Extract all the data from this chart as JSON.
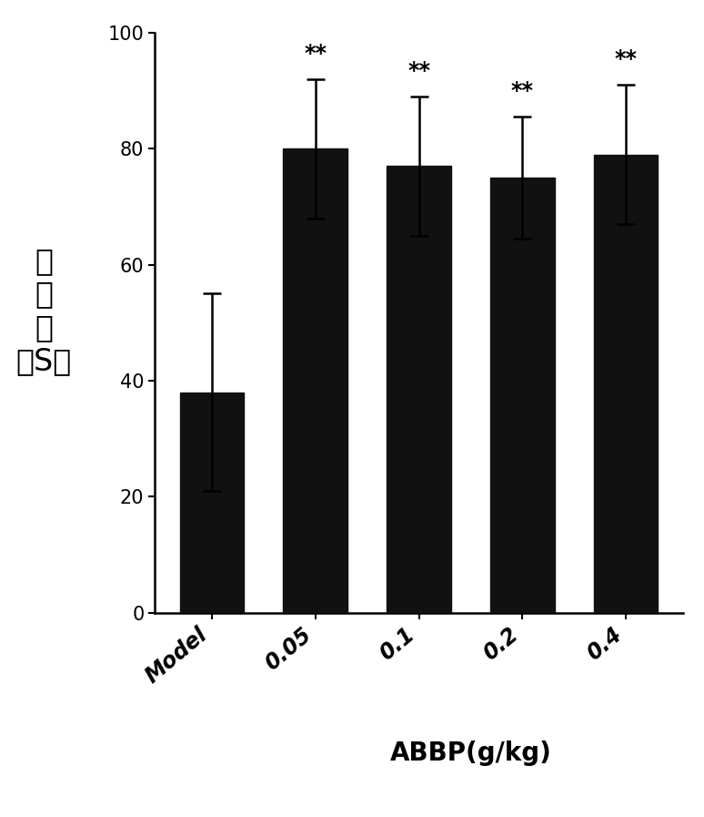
{
  "categories": [
    "Model",
    "0.05",
    "0.1",
    "0.2",
    "0.4"
  ],
  "values": [
    38.0,
    80.0,
    77.0,
    75.0,
    79.0
  ],
  "errors_up": [
    17.0,
    12.0,
    12.0,
    10.5,
    12.0
  ],
  "errors_down": [
    17.0,
    12.0,
    12.0,
    10.5,
    12.0
  ],
  "bar_color": "#111111",
  "bar_width": 0.62,
  "ylim": [
    0,
    100
  ],
  "yticks": [
    0,
    20,
    40,
    60,
    80,
    100
  ],
  "significance": [
    "",
    "**",
    "**",
    "**",
    "**"
  ],
  "ylabel_text": "潜伏期（S）",
  "xlabel": "ABBP(g/kg)",
  "sig_fontsize": 17,
  "ylabel_fontsize": 24,
  "xlabel_fontsize": 20,
  "tick_fontsize": 15,
  "xtick_fontsize": 17,
  "background_color": "#ffffff"
}
